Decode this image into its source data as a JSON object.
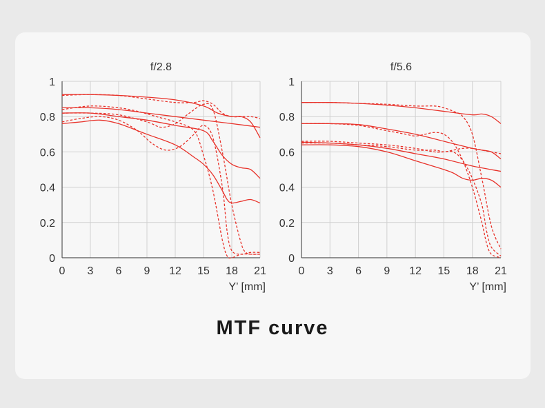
{
  "caption": "MTF curve",
  "colors": {
    "curve": "#e8332b",
    "grid": "#d0d0d0",
    "axis": "#555555",
    "text": "#333333"
  },
  "chart_data": [
    {
      "type": "line",
      "title": "f/2.8",
      "xlabel": "Y’ [mm]",
      "ylabel": "",
      "xlim": [
        0,
        21
      ],
      "ylim": [
        0,
        1
      ],
      "xticks": [
        "0",
        "3",
        "6",
        "9",
        "12",
        "15",
        "18",
        "21"
      ],
      "yticks": [
        "0",
        "0.2",
        "0.4",
        "0.6",
        "0.8",
        "1"
      ],
      "grid": true,
      "series": [
        {
          "style": "solid",
          "x": [
            0,
            3,
            6,
            9,
            12,
            15,
            16.5,
            18,
            19,
            20,
            21
          ],
          "values": [
            0.925,
            0.925,
            0.92,
            0.91,
            0.895,
            0.86,
            0.82,
            0.8,
            0.8,
            0.77,
            0.68
          ]
        },
        {
          "style": "dashed",
          "x": [
            0,
            3,
            6,
            9,
            12,
            14,
            15,
            16,
            17,
            18,
            19,
            20,
            21
          ],
          "values": [
            0.92,
            0.925,
            0.92,
            0.9,
            0.88,
            0.88,
            0.89,
            0.87,
            0.82,
            0.8,
            0.8,
            0.8,
            0.79
          ]
        },
        {
          "style": "solid",
          "x": [
            0,
            3,
            6,
            9,
            12,
            15,
            18,
            21
          ],
          "values": [
            0.85,
            0.85,
            0.84,
            0.82,
            0.8,
            0.78,
            0.76,
            0.74
          ]
        },
        {
          "style": "dashed",
          "x": [
            0,
            3,
            6,
            8,
            10,
            12,
            14,
            15,
            16,
            17,
            17.5,
            18,
            19,
            20,
            21
          ],
          "values": [
            0.84,
            0.86,
            0.85,
            0.83,
            0.8,
            0.77,
            0.72,
            0.58,
            0.38,
            0.1,
            0.01,
            0.0,
            0.02,
            0.02,
            0.02
          ]
        },
        {
          "style": "solid",
          "x": [
            0,
            3,
            6,
            9,
            12,
            15,
            16,
            17,
            18,
            19,
            20,
            21
          ],
          "values": [
            0.82,
            0.82,
            0.8,
            0.78,
            0.75,
            0.72,
            0.66,
            0.58,
            0.53,
            0.51,
            0.5,
            0.45
          ]
        },
        {
          "style": "dashed",
          "x": [
            0,
            3,
            6,
            9,
            10.5,
            12,
            13.5,
            15,
            16,
            17,
            18,
            19,
            19.5,
            20,
            21
          ],
          "values": [
            0.82,
            0.82,
            0.81,
            0.77,
            0.74,
            0.76,
            0.82,
            0.87,
            0.84,
            0.6,
            0.3,
            0.08,
            0.03,
            0.02,
            0.02
          ]
        },
        {
          "style": "solid",
          "x": [
            0,
            2,
            4,
            6,
            9,
            12,
            14,
            15,
            16,
            17,
            17.5,
            18,
            19,
            20,
            21
          ],
          "values": [
            0.76,
            0.77,
            0.78,
            0.76,
            0.7,
            0.64,
            0.57,
            0.53,
            0.47,
            0.38,
            0.33,
            0.31,
            0.32,
            0.33,
            0.31
          ]
        },
        {
          "style": "dashed",
          "x": [
            0,
            2,
            4,
            6,
            8,
            9.5,
            11,
            12.5,
            14,
            15,
            16,
            17,
            17.5,
            18,
            19,
            20,
            21
          ],
          "values": [
            0.77,
            0.79,
            0.8,
            0.78,
            0.72,
            0.65,
            0.61,
            0.63,
            0.7,
            0.75,
            0.68,
            0.4,
            0.15,
            0.04,
            0.02,
            0.03,
            0.03
          ]
        }
      ]
    },
    {
      "type": "line",
      "title": "f/5.6",
      "xlabel": "Y’ [mm]",
      "ylabel": "",
      "xlim": [
        0,
        21
      ],
      "ylim": [
        0,
        1
      ],
      "xticks": [
        "0",
        "3",
        "6",
        "9",
        "12",
        "15",
        "18",
        "21"
      ],
      "yticks": [
        "0",
        "0.2",
        "0.4",
        "0.6",
        "0.8",
        "1"
      ],
      "grid": true,
      "series": [
        {
          "style": "solid",
          "x": [
            0,
            3,
            6,
            9,
            12,
            15,
            18,
            19,
            20,
            21
          ],
          "values": [
            0.88,
            0.88,
            0.875,
            0.865,
            0.85,
            0.83,
            0.81,
            0.815,
            0.8,
            0.76
          ]
        },
        {
          "style": "dashed",
          "x": [
            0,
            3,
            6,
            9,
            12,
            14,
            15,
            16,
            17,
            18,
            19,
            20,
            21
          ],
          "values": [
            0.88,
            0.88,
            0.875,
            0.87,
            0.86,
            0.86,
            0.85,
            0.83,
            0.8,
            0.7,
            0.45,
            0.18,
            0.05
          ]
        },
        {
          "style": "solid",
          "x": [
            0,
            3,
            6,
            9,
            12,
            15,
            18,
            19,
            20,
            21
          ],
          "values": [
            0.76,
            0.76,
            0.755,
            0.73,
            0.7,
            0.66,
            0.62,
            0.61,
            0.6,
            0.56
          ]
        },
        {
          "style": "dashed",
          "x": [
            0,
            3,
            6,
            9,
            11,
            12,
            13,
            14,
            15,
            16,
            17,
            18,
            19,
            19.5,
            20,
            21
          ],
          "values": [
            0.76,
            0.76,
            0.75,
            0.72,
            0.7,
            0.69,
            0.7,
            0.71,
            0.7,
            0.65,
            0.55,
            0.4,
            0.2,
            0.08,
            0.02,
            0.0
          ]
        },
        {
          "style": "solid",
          "x": [
            0,
            3,
            6,
            9,
            12,
            15,
            18,
            21
          ],
          "values": [
            0.655,
            0.65,
            0.64,
            0.62,
            0.59,
            0.56,
            0.52,
            0.49
          ]
        },
        {
          "style": "dashed",
          "x": [
            0,
            3,
            6,
            9,
            12,
            14,
            15,
            16,
            17,
            18,
            19,
            20,
            21
          ],
          "values": [
            0.66,
            0.66,
            0.65,
            0.64,
            0.62,
            0.6,
            0.6,
            0.61,
            0.62,
            0.62,
            0.61,
            0.6,
            0.59
          ]
        },
        {
          "style": "solid",
          "x": [
            0,
            3,
            6,
            9,
            12,
            15,
            16,
            17,
            18,
            19,
            20,
            21
          ],
          "values": [
            0.64,
            0.64,
            0.63,
            0.6,
            0.55,
            0.5,
            0.48,
            0.45,
            0.44,
            0.45,
            0.44,
            0.4
          ]
        },
        {
          "style": "dashed",
          "x": [
            0,
            3,
            6,
            9,
            12,
            14,
            15,
            16,
            17,
            18,
            19,
            19.5,
            20,
            21
          ],
          "values": [
            0.65,
            0.65,
            0.64,
            0.63,
            0.61,
            0.61,
            0.6,
            0.6,
            0.55,
            0.45,
            0.3,
            0.15,
            0.06,
            0.01
          ]
        }
      ]
    }
  ]
}
